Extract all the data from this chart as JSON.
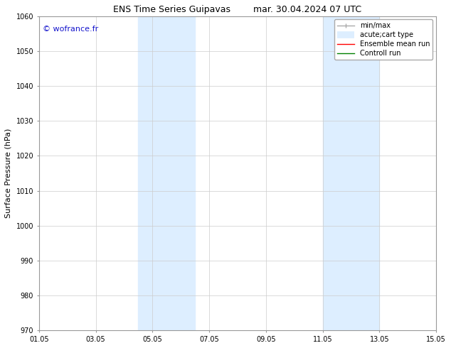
{
  "title_left": "ENS Time Series Guipavas",
  "title_right": "mar. 30.04.2024 07 UTC",
  "ylabel": "Surface Pressure (hPa)",
  "ylim": [
    970,
    1060
  ],
  "yticks": [
    970,
    980,
    990,
    1000,
    1010,
    1020,
    1030,
    1040,
    1050,
    1060
  ],
  "xtick_labels": [
    "01.05",
    "03.05",
    "05.05",
    "07.05",
    "09.05",
    "11.05",
    "13.05",
    "15.05"
  ],
  "xtick_positions": [
    0,
    2,
    4,
    6,
    8,
    10,
    12,
    14
  ],
  "xlim": [
    0,
    14
  ],
  "shaded_bands": [
    {
      "x_start": 3.5,
      "x_end": 5.5
    },
    {
      "x_start": 10,
      "x_end": 12
    }
  ],
  "shaded_color": "#ddeeff",
  "watermark_text": "© wofrance.fr",
  "watermark_color": "#1515cc",
  "legend_items": [
    {
      "label": "min/max",
      "color": "#aaaaaa",
      "lw": 1.0
    },
    {
      "label": "acute;cart type",
      "color": "#ddeeff",
      "lw": 5
    },
    {
      "label": "Ensemble mean run",
      "color": "red",
      "lw": 1.0
    },
    {
      "label": "Controll run",
      "color": "green",
      "lw": 1.0
    }
  ],
  "bg_color": "#ffffff",
  "grid_color": "#cccccc",
  "title_fontsize": 9,
  "label_fontsize": 8,
  "tick_fontsize": 7,
  "watermark_fontsize": 8,
  "legend_fontsize": 7
}
